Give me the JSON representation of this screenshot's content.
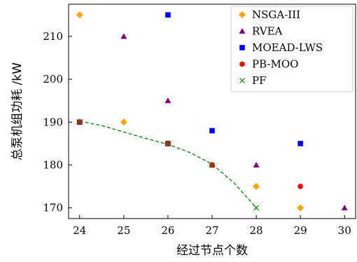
{
  "chart_data": {
    "type": "scatter",
    "xlabel": "经过节点个数",
    "ylabel": "总泵机组功耗 /kW",
    "xlim": [
      23.75,
      30.25
    ],
    "ylim": [
      167.5,
      217.5
    ],
    "x_ticks": [
      "24",
      "25",
      "26",
      "27",
      "28",
      "29",
      "30"
    ],
    "y_ticks": [
      "170",
      "180",
      "190",
      "200",
      "210"
    ],
    "x_tick_values": [
      24,
      25,
      26,
      27,
      28,
      29,
      30
    ],
    "y_tick_values": [
      170,
      180,
      190,
      200,
      210
    ],
    "grid": false,
    "legend_position": "top-right",
    "series": [
      {
        "name": "NSGA-III",
        "marker": "diamond",
        "color": "#FFA500",
        "x": [
          24,
          24,
          25,
          26,
          27,
          28,
          29
        ],
        "y": [
          215,
          190,
          190,
          185,
          180,
          175,
          170
        ]
      },
      {
        "name": "RVEA",
        "marker": "triangle",
        "color": "#800080",
        "x": [
          24,
          25,
          26,
          26,
          27,
          28,
          30
        ],
        "y": [
          190,
          210,
          195,
          185,
          180,
          180,
          170
        ]
      },
      {
        "name": "MOEAD-LWS",
        "marker": "square",
        "color": "#0000FF",
        "x": [
          24,
          26,
          26,
          27,
          29
        ],
        "y": [
          190,
          215,
          185,
          188,
          185
        ]
      },
      {
        "name": "PB-MOO",
        "marker": "circle",
        "color": "#FF0000",
        "x": [
          24,
          26,
          27,
          29
        ],
        "y": [
          190,
          185,
          180,
          175
        ]
      },
      {
        "name": "PF",
        "marker": "x",
        "color": "#008000",
        "x": [
          24,
          26,
          27,
          28
        ],
        "y": [
          190,
          185,
          180,
          170
        ]
      }
    ],
    "pf_curve": {
      "style": "dashed",
      "color": "#008000",
      "x": [
        24,
        24.5,
        25,
        25.5,
        26,
        26.5,
        27,
        27.5,
        28
      ],
      "y": [
        190.2,
        189.2,
        187.7,
        186.2,
        184.8,
        182.9,
        180.2,
        175.8,
        170
      ]
    }
  }
}
